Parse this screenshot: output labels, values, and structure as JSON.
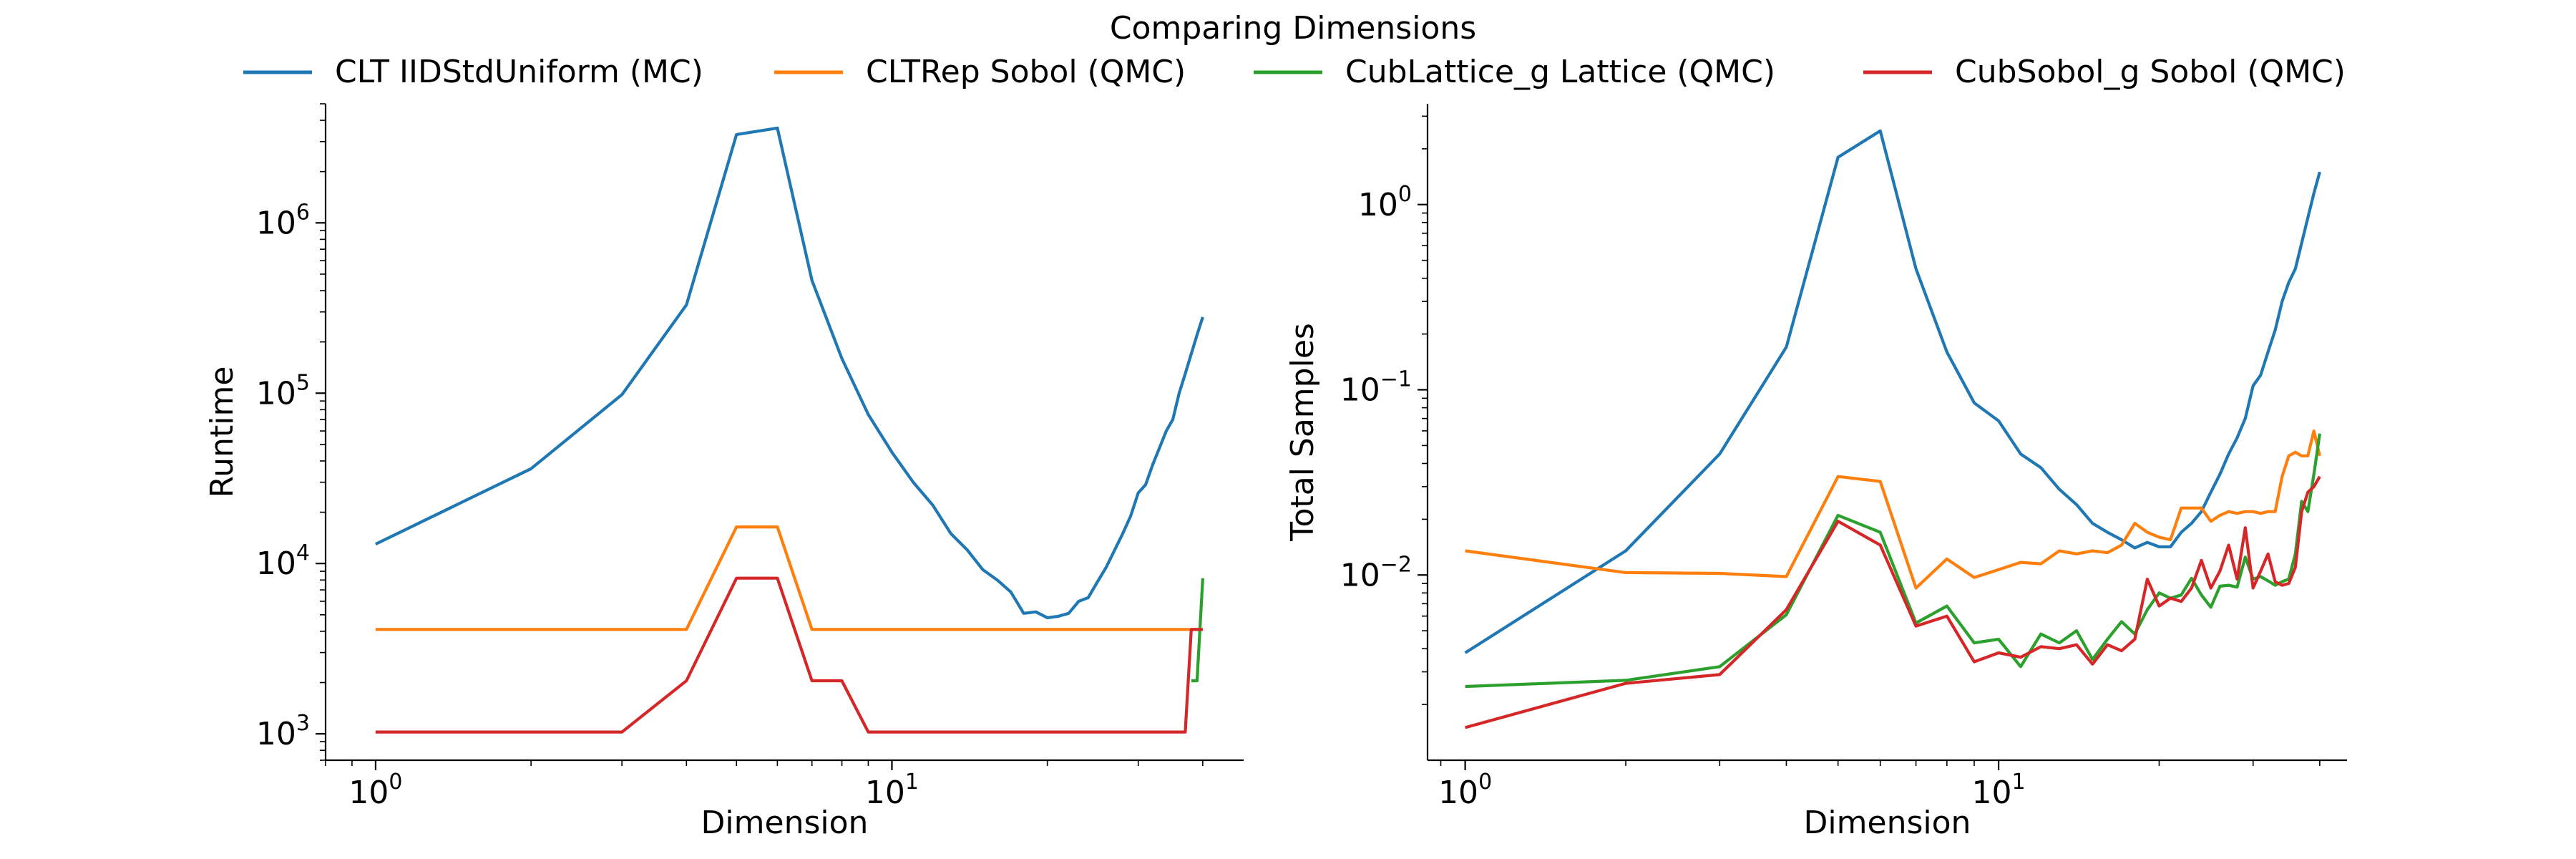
{
  "figure": {
    "title": "Comparing Dimensions"
  },
  "legend": {
    "placement": "top-center, above plots",
    "entries": [
      {
        "label": "CLT IIDStdUniform (MC)",
        "color": "#1f77b4"
      },
      {
        "label": "CLTRep Sobol (QMC)",
        "color": "#ff7f0e"
      },
      {
        "label": "CubLattice_g Lattice (QMC)",
        "color": "#2ca02c"
      },
      {
        "label": "CubSobol_g Sobol (QMC)",
        "color": "#d62728"
      }
    ]
  },
  "chart_data": [
    {
      "type": "line",
      "xlabel": "Dimension",
      "ylabel": "Runtime",
      "xscale": "log",
      "yscale": "log",
      "xlim": [
        0.8,
        48
      ],
      "ylim": [
        700,
        5000000
      ],
      "xticks": [
        {
          "value": 1,
          "base": "10",
          "exp": "0"
        },
        {
          "value": 10,
          "base": "10",
          "exp": "1"
        }
      ],
      "yticks": [
        {
          "value": 1000,
          "base": "10",
          "exp": "3"
        },
        {
          "value": 10000,
          "base": "10",
          "exp": "4"
        },
        {
          "value": 100000,
          "base": "10",
          "exp": "5"
        },
        {
          "value": 1000000,
          "base": "10",
          "exp": "6"
        }
      ],
      "grid": false,
      "series": [
        {
          "name": "CLT IIDStdUniform (MC)",
          "color": "#1f77b4",
          "x": [
            1,
            2,
            3,
            4,
            5,
            6,
            7,
            8,
            9,
            10,
            11,
            12,
            13,
            14,
            15,
            16,
            17,
            18,
            19,
            20,
            21,
            22,
            23,
            24,
            25,
            26,
            27,
            28,
            29,
            30,
            31,
            32,
            33,
            34,
            35,
            36,
            37,
            38,
            39,
            40
          ],
          "y": [
            13000,
            36000,
            98000,
            330000,
            3300000,
            3600000,
            460000,
            160000,
            75000,
            45000,
            30000,
            22000,
            15000,
            12000,
            9200,
            8000,
            6800,
            5100,
            5200,
            4800,
            4900,
            5100,
            6000,
            6300,
            7800,
            9500,
            12000,
            15000,
            19000,
            26000,
            29000,
            38000,
            48000,
            60000,
            70000,
            100000,
            130000,
            170000,
            220000,
            280000
          ]
        },
        {
          "name": "CLTRep Sobol (QMC)",
          "color": "#ff7f0e",
          "x": [
            1,
            2,
            3,
            4,
            5,
            6,
            7,
            8,
            9,
            10,
            15,
            20,
            25,
            30,
            35,
            40
          ],
          "y": [
            4100,
            4100,
            4100,
            4100,
            16400,
            16400,
            4100,
            4100,
            4100,
            4100,
            4100,
            4100,
            4100,
            4100,
            4100,
            4100
          ]
        },
        {
          "name": "CubLattice_g Lattice (QMC)",
          "color": "#2ca02c",
          "x": [
            38,
            39,
            40
          ],
          "y": [
            2050,
            2050,
            8200
          ]
        },
        {
          "name": "CubSobol_g Sobol (QMC)",
          "color": "#d62728",
          "x": [
            1,
            2,
            3,
            4,
            5,
            6,
            7,
            8,
            9,
            10,
            15,
            20,
            25,
            30,
            36,
            37,
            38,
            39,
            40
          ],
          "y": [
            1025,
            1025,
            1025,
            2050,
            8200,
            8200,
            2050,
            2050,
            1025,
            1025,
            1025,
            1025,
            1025,
            1025,
            1025,
            1025,
            4100,
            4100,
            4100
          ]
        }
      ]
    },
    {
      "type": "line",
      "xlabel": "Dimension",
      "ylabel": "Total Samples",
      "xscale": "log",
      "yscale": "log",
      "xlim": [
        0.85,
        45
      ],
      "ylim": [
        0.001,
        3.5
      ],
      "xticks": [
        {
          "value": 1,
          "base": "10",
          "exp": "0"
        },
        {
          "value": 10,
          "base": "10",
          "exp": "1"
        }
      ],
      "yticks": [
        {
          "value": 0.01,
          "base": "10",
          "exp": "−2"
        },
        {
          "value": 0.1,
          "base": "10",
          "exp": "−1"
        },
        {
          "value": 1,
          "base": "10",
          "exp": "0"
        }
      ],
      "grid": false,
      "series": [
        {
          "name": "CLT IIDStdUniform (MC)",
          "color": "#1f77b4",
          "x": [
            1,
            2,
            3,
            4,
            5,
            6,
            7,
            8,
            9,
            10,
            11,
            12,
            13,
            14,
            15,
            16,
            17,
            18,
            19,
            20,
            21,
            22,
            23,
            24,
            25,
            26,
            27,
            28,
            29,
            30,
            31,
            32,
            33,
            34,
            35,
            36,
            37,
            38,
            39,
            40
          ],
          "y": [
            0.0038,
            0.0135,
            0.045,
            0.17,
            1.8,
            2.5,
            0.45,
            0.16,
            0.085,
            0.068,
            0.045,
            0.038,
            0.029,
            0.024,
            0.019,
            0.017,
            0.0155,
            0.014,
            0.015,
            0.0142,
            0.0142,
            0.017,
            0.019,
            0.022,
            0.028,
            0.035,
            0.045,
            0.055,
            0.07,
            0.105,
            0.12,
            0.16,
            0.21,
            0.3,
            0.38,
            0.45,
            0.62,
            0.85,
            1.15,
            1.5
          ]
        },
        {
          "name": "CLTRep Sobol (QMC)",
          "color": "#ff7f0e",
          "x": [
            1,
            2,
            3,
            4,
            5,
            6,
            7,
            8,
            9,
            10,
            11,
            12,
            13,
            14,
            15,
            16,
            17,
            18,
            19,
            20,
            21,
            22,
            23,
            24,
            25,
            26,
            27,
            28,
            29,
            30,
            31,
            32,
            33,
            34,
            35,
            36,
            37,
            38,
            39,
            40
          ],
          "y": [
            0.0135,
            0.0103,
            0.0102,
            0.0098,
            0.034,
            0.032,
            0.0085,
            0.0122,
            0.0097,
            0.0107,
            0.0117,
            0.0115,
            0.0135,
            0.013,
            0.0135,
            0.0132,
            0.0145,
            0.019,
            0.017,
            0.016,
            0.0155,
            0.023,
            0.023,
            0.023,
            0.0195,
            0.021,
            0.022,
            0.0215,
            0.022,
            0.022,
            0.0215,
            0.022,
            0.022,
            0.034,
            0.044,
            0.046,
            0.044,
            0.044,
            0.06,
            0.044
          ]
        },
        {
          "name": "CubLattice_g Lattice (QMC)",
          "color": "#2ca02c",
          "x": [
            1,
            2,
            3,
            4,
            5,
            6,
            7,
            8,
            9,
            10,
            11,
            12,
            13,
            14,
            15,
            16,
            17,
            18,
            19,
            20,
            21,
            22,
            23,
            24,
            25,
            26,
            27,
            28,
            29,
            30,
            31,
            32,
            33,
            34,
            35,
            36,
            37,
            38,
            39,
            40
          ],
          "y": [
            0.0025,
            0.0027,
            0.0032,
            0.0061,
            0.021,
            0.017,
            0.0055,
            0.0068,
            0.0043,
            0.0045,
            0.0032,
            0.0048,
            0.0043,
            0.005,
            0.0035,
            0.0045,
            0.0056,
            0.0048,
            0.0065,
            0.008,
            0.0075,
            0.0078,
            0.0096,
            0.0078,
            0.0067,
            0.0087,
            0.0088,
            0.0086,
            0.0125,
            0.0095,
            0.0098,
            0.0093,
            0.0088,
            0.0092,
            0.0095,
            0.013,
            0.025,
            0.022,
            0.035,
            0.058
          ]
        },
        {
          "name": "CubSobol_g Sobol (QMC)",
          "color": "#d62728",
          "x": [
            1,
            2,
            3,
            4,
            5,
            6,
            7,
            8,
            9,
            10,
            11,
            12,
            13,
            14,
            15,
            16,
            17,
            18,
            19,
            20,
            21,
            22,
            23,
            24,
            25,
            26,
            27,
            28,
            29,
            30,
            31,
            32,
            33,
            34,
            35,
            36,
            37,
            38,
            39,
            40
          ],
          "y": [
            0.0015,
            0.0026,
            0.0029,
            0.0065,
            0.0195,
            0.0145,
            0.0053,
            0.006,
            0.0034,
            0.0038,
            0.0036,
            0.0041,
            0.004,
            0.0042,
            0.0033,
            0.0042,
            0.0039,
            0.0045,
            0.0095,
            0.0068,
            0.0075,
            0.0072,
            0.0085,
            0.012,
            0.0085,
            0.0105,
            0.0145,
            0.0095,
            0.018,
            0.0085,
            0.0105,
            0.013,
            0.0092,
            0.0088,
            0.009,
            0.011,
            0.022,
            0.028,
            0.03,
            0.034
          ]
        }
      ]
    }
  ]
}
